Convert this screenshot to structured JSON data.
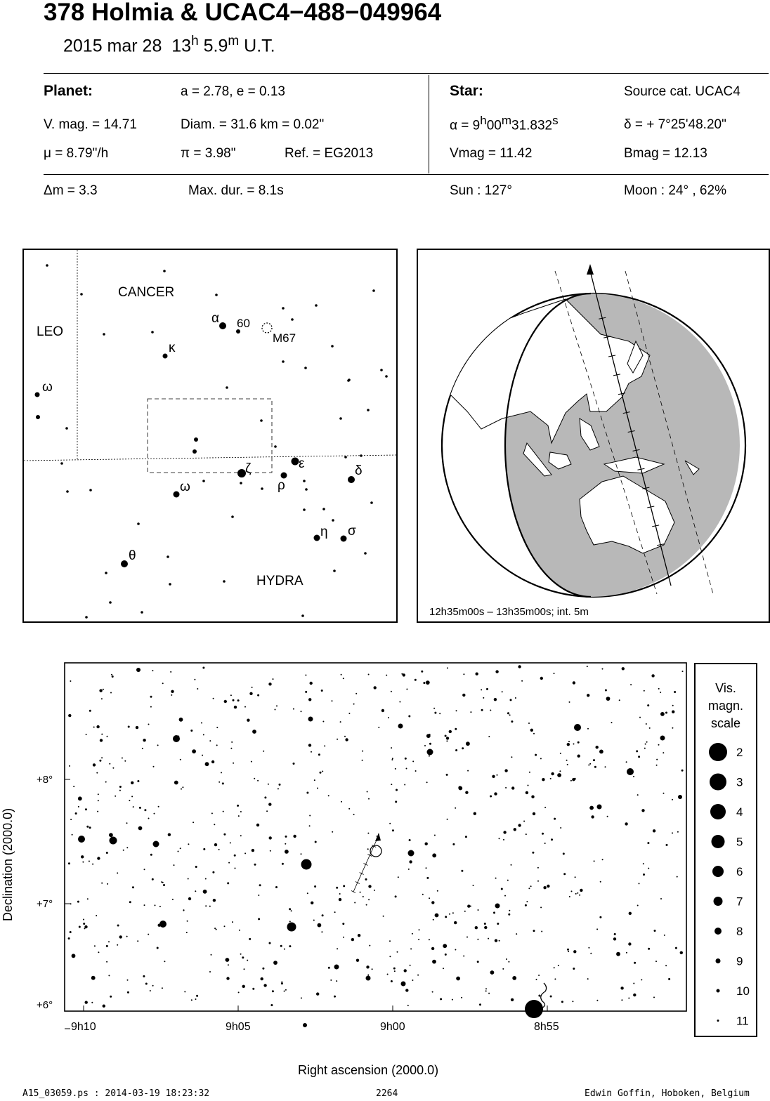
{
  "header": {
    "title": "378 Holmia  &  UCAC4−488−049964",
    "date": "2015 mar 28",
    "time_h": "13",
    "h_unit": "h",
    "time_m": "5.9",
    "m_unit": "m",
    "time_suffix": "U.T."
  },
  "planet": {
    "heading": "Planet:",
    "orbit": "a = 2.78, e = 0.13",
    "vmag": "V. mag. = 14.71",
    "diam": "Diam. = 31.6 km = 0.02\"",
    "mu": "μ =  8.79\"/h",
    "pi": "π =  3.98\"",
    "ref": "Ref. = EG2013"
  },
  "star": {
    "heading": "Star:",
    "source": "Source cat.  UCAC4",
    "ra_prefix": "α =  9",
    "ra_h": "h",
    "ra_00": "00",
    "ra_m": "m",
    "ra_sec": "31.832",
    "ra_s": "s",
    "dec": "δ = + 7°25'48.20\"",
    "vmag": "Vmag = 11.42",
    "bmag": "Bmag = 12.13"
  },
  "event": {
    "dm": "Δm = 3.3",
    "maxdur": "Max. dur. = 8.1s",
    "sun": "Sun : 127°",
    "moon": "Moon :  24° , 62%"
  },
  "constellation_map": {
    "labels": {
      "cancer": "CANCER",
      "leo": "LEO",
      "hydra": "HYDRA",
      "alpha": "α",
      "sixty": "60",
      "m67": "M67",
      "kappa": "κ",
      "omega_left": "ω",
      "zeta": "ζ",
      "epsilon": "ε",
      "rho": "ρ",
      "delta": "δ",
      "omega": "ω",
      "eta": "η",
      "sigma": "σ",
      "theta": "θ"
    }
  },
  "globe": {
    "caption": "12h35m00s – 13h35m00s; int.  5m"
  },
  "star_chart": {
    "x_ticks": [
      "9h10",
      "9h05",
      "9h00",
      "8h55"
    ],
    "y_ticks": [
      "+8°",
      "+7°",
      "+6°"
    ],
    "x_label": "Right ascension (2000.0)",
    "y_label": "Declination (2000.0)",
    "zeta_label": "ζ"
  },
  "legend": {
    "title1": "Vis.",
    "title2": "magn.",
    "title3": "scale",
    "mags": [
      "2",
      "3",
      "4",
      "5",
      "6",
      "7",
      "8",
      "9",
      "10",
      "11"
    ]
  },
  "footer": {
    "file": "A15_03059.ps : 2014-03-19 18:23:32",
    "page": "2264",
    "author": "Edwin Goffin, Hoboken, Belgium"
  }
}
